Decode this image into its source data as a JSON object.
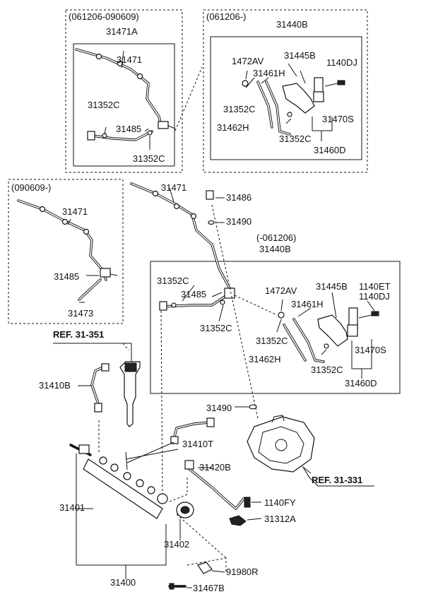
{
  "boxes": {
    "top_left_range": "(061206-090609)",
    "top_right_range": "(061206-)",
    "mid_left_range": "(090609-)",
    "mid_right_range": "(-061206)"
  },
  "labels": {
    "p31471A": "31471A",
    "p31471_tl": "31471",
    "p31352C_tl1": "31352C",
    "p31485_tl": "31485",
    "p31352C_tl2": "31352C",
    "p31440B_tr": "31440B",
    "p1472AV_tr": "1472AV",
    "p31445B_tr": "31445B",
    "p1140DJ_tr": "1140DJ",
    "p31461H_tr": "31461H",
    "p31352C_tr1": "31352C",
    "p31462H_tr": "31462H",
    "p31470S_tr": "31470S",
    "p31352C_tr2": "31352C",
    "p31460D_tr": "31460D",
    "p31471_ml": "31471",
    "p31485_ml": "31485",
    "p31473_ml": "31473",
    "p31471_c": "31471",
    "p31486": "31486",
    "p31490_1": "31490",
    "p31440B_mr": "31440B",
    "p31352C_mr1": "31352C",
    "p31485_mr": "31485",
    "p1472AV_mr": "1472AV",
    "p31445B_mr": "31445B",
    "p1140ET_mr": "1140ET",
    "p1140DJ_mr": "1140DJ",
    "p31461H_mr": "31461H",
    "p31352C_mr2": "31352C",
    "p31352C_mr3": "31352C",
    "p31462H_mr": "31462H",
    "p31470S_mr": "31470S",
    "p31352C_mr4": "31352C",
    "p31460D_mr": "31460D",
    "ref_31351": "REF. 31-351",
    "p31410B": "31410B",
    "p31490_2": "31490",
    "p31410T": "31410T",
    "p31420B": "31420B",
    "ref_31331": "REF. 31-331",
    "p31401": "31401",
    "p1140FY": "1140FY",
    "p31312A": "31312A",
    "p31402": "31402",
    "p91980R": "91980R",
    "p31400": "31400",
    "p31467B": "31467B"
  }
}
